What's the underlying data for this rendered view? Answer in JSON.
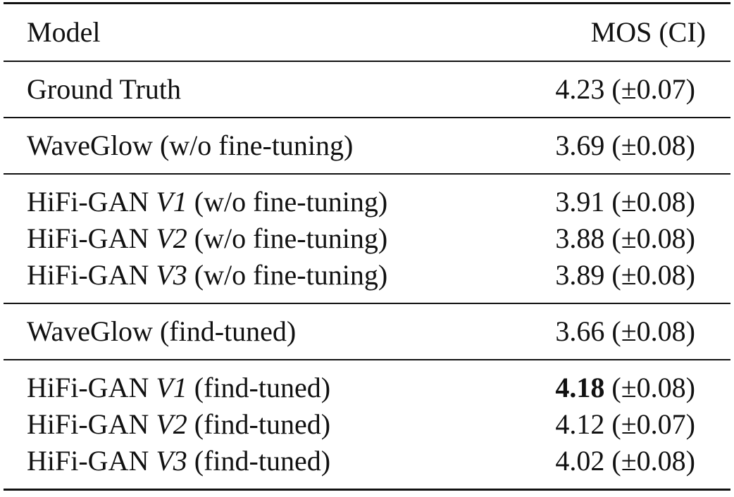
{
  "table": {
    "header": {
      "model": "Model",
      "mos": "MOS (CI)"
    },
    "groups": [
      [
        {
          "model": {
            "name": "Ground Truth"
          },
          "mos": 4.23,
          "ci": "(±0.07)"
        }
      ],
      [
        {
          "model": {
            "name": "WaveGlow",
            "note": "(w/o fine-tuning)"
          },
          "mos": 3.69,
          "ci": "(±0.08)"
        }
      ],
      [
        {
          "model": {
            "name": "HiFi-GAN",
            "variant": "V1",
            "note": "(w/o fine-tuning)"
          },
          "mos": 3.91,
          "ci": "(±0.08)"
        },
        {
          "model": {
            "name": "HiFi-GAN",
            "variant": "V2",
            "note": "(w/o fine-tuning)"
          },
          "mos": 3.88,
          "ci": "(±0.08)"
        },
        {
          "model": {
            "name": "HiFi-GAN",
            "variant": "V3",
            "note": "(w/o fine-tuning)"
          },
          "mos": 3.89,
          "ci": "(±0.08)"
        }
      ],
      [
        {
          "model": {
            "name": "WaveGlow",
            "note": "(find-tuned)"
          },
          "mos": 3.66,
          "ci": "(±0.08)"
        }
      ],
      [
        {
          "model": {
            "name": "HiFi-GAN",
            "variant": "V1",
            "note": "(find-tuned)"
          },
          "mos": 4.18,
          "ci": "(±0.08)",
          "best": true
        },
        {
          "model": {
            "name": "HiFi-GAN",
            "variant": "V2",
            "note": "(find-tuned)"
          },
          "mos": 4.12,
          "ci": "(±0.07)"
        },
        {
          "model": {
            "name": "HiFi-GAN",
            "variant": "V3",
            "note": "(find-tuned)"
          },
          "mos": 4.02,
          "ci": "(±0.08)"
        }
      ]
    ]
  }
}
